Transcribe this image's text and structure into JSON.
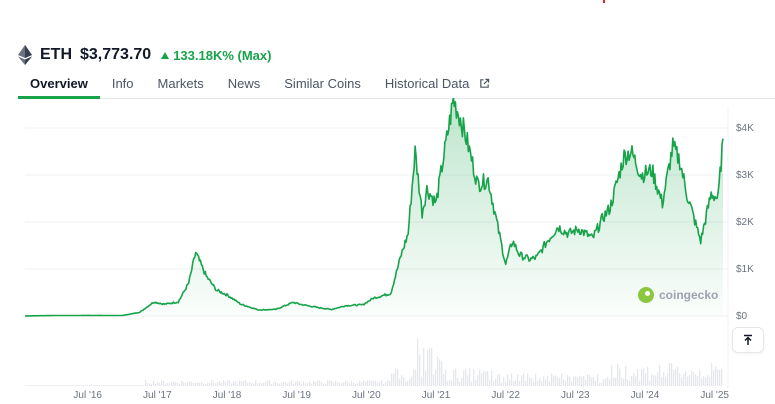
{
  "coin": {
    "symbol": "ETH",
    "price": "$3,773.70",
    "change": "133.18K% (Max)",
    "icon": "ethereum-diamond-icon"
  },
  "tabs": [
    {
      "label": "Overview",
      "active": true
    },
    {
      "label": "Info"
    },
    {
      "label": "Markets"
    },
    {
      "label": "News"
    },
    {
      "label": "Similar Coins"
    },
    {
      "label": "Historical Data",
      "icon": "external-link-icon"
    }
  ],
  "watermark": "coingecko",
  "colors": {
    "accent": "#16a34a",
    "line": "#16a34a",
    "fill_top": "#bbf7d0",
    "grid": "#eef0f3",
    "volume": "#e5e7eb"
  },
  "chart_data": {
    "type": "area",
    "yaxis_ticks": [
      "$0",
      "$1K",
      "$2K",
      "$3K",
      "$4K"
    ],
    "xaxis_ticks": [
      "Jul '16",
      "Jul '17",
      "Jul '18",
      "Jul '19",
      "Jul '20",
      "Jul '21",
      "Jul '22",
      "Jul '23",
      "Jul '24",
      "Jul '25"
    ],
    "ylim": [
      0,
      4000
    ],
    "grid": true,
    "series": [
      {
        "x": [
          2015.6,
          2016.0,
          2016.5,
          2017.0,
          2017.25,
          2017.45,
          2017.6,
          2017.8,
          2017.95,
          2018.05,
          2018.2,
          2018.35,
          2018.5,
          2018.7,
          2018.95,
          2019.2,
          2019.45,
          2019.55,
          2019.8,
          2020.0,
          2020.2,
          2020.45,
          2020.6,
          2020.85,
          2021.0,
          2021.1,
          2021.2,
          2021.3,
          2021.37,
          2021.5,
          2021.6,
          2021.75,
          2021.85,
          2021.95,
          2022.1,
          2022.25,
          2022.4,
          2022.5,
          2022.6,
          2022.7,
          2022.85,
          2022.95,
          2023.1,
          2023.25,
          2023.4,
          2023.55,
          2023.75,
          2023.9,
          2024.0,
          2024.2,
          2024.3,
          2024.45,
          2024.6,
          2024.75,
          2024.9,
          2025.0,
          2025.1,
          2025.3,
          2025.45,
          2025.55,
          2025.62
        ],
        "values": [
          1,
          10,
          12,
          10,
          80,
          300,
          250,
          300,
          700,
          1350,
          850,
          550,
          450,
          250,
          130,
          140,
          290,
          250,
          180,
          140,
          220,
          240,
          380,
          480,
          1300,
          1750,
          3500,
          2200,
          2700,
          2400,
          3300,
          4600,
          4200,
          3700,
          2800,
          2900,
          1800,
          1100,
          1600,
          1300,
          1200,
          1250,
          1600,
          1900,
          1750,
          1850,
          1650,
          2100,
          2300,
          3400,
          3500,
          3000,
          3100,
          2400,
          3600,
          3300,
          2600,
          1600,
          2600,
          2500,
          3773
        ]
      }
    ]
  }
}
